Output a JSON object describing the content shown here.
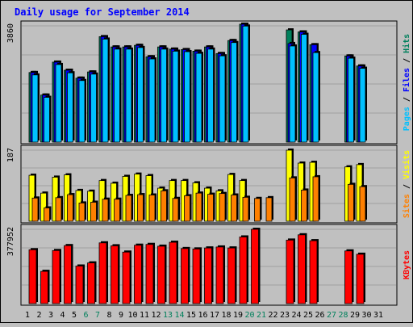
{
  "chart_data": [
    {
      "type": "bar",
      "panel": "pages-files-hits",
      "title": "Daily usage for September 2014",
      "categories": [
        "1",
        "2",
        "3",
        "4",
        "5",
        "6",
        "7",
        "8",
        "9",
        "10",
        "11",
        "12",
        "13",
        "14",
        "15",
        "16",
        "17",
        "18",
        "19",
        "20",
        "21",
        "22",
        "23",
        "24",
        "25",
        "26",
        "27",
        "28",
        "29",
        "30",
        "31"
      ],
      "weekend_days": [
        "6",
        "7",
        "13",
        "14",
        "20",
        "21",
        "27",
        "28"
      ],
      "axis_max_label": "3860",
      "ylim": [
        0,
        3860
      ],
      "legend": [
        {
          "name": "Hits",
          "color": "#00805c"
        },
        {
          "name": "Files",
          "color": "#0000ff"
        },
        {
          "name": "Pages",
          "color": "#00c0ff"
        }
      ],
      "series": [
        {
          "name": "Hits",
          "color": "#00805c",
          "values": [
            2310,
            1562,
            2655,
            2386,
            2123,
            2329,
            3500,
            3159,
            3159,
            3212,
            2833,
            3159,
            3087,
            3071,
            3018,
            3159,
            2940,
            3371,
            3914,
            null,
            null,
            null,
            3725,
            3658,
            3233,
            null,
            null,
            2860,
            2527,
            null,
            null
          ]
        },
        {
          "name": "Files",
          "color": "#0000ff",
          "values": [
            2310,
            1562,
            2655,
            2386,
            2123,
            2329,
            3500,
            3159,
            3159,
            3212,
            2833,
            3159,
            3087,
            3071,
            3018,
            3159,
            2940,
            3371,
            3914,
            null,
            null,
            null,
            3273,
            3658,
            3233,
            null,
            null,
            2860,
            2527,
            null,
            null
          ]
        },
        {
          "name": "Pages",
          "color": "#00c0ff",
          "values": [
            2230,
            1486,
            2575,
            2300,
            2044,
            2257,
            3420,
            3087,
            3087,
            3140,
            2761,
            3087,
            3018,
            3002,
            2946,
            3087,
            2864,
            3305,
            3852,
            null,
            null,
            null,
            3191,
            3578,
            2971,
            null,
            null,
            2786,
            2451,
            null,
            null
          ]
        }
      ]
    },
    {
      "type": "bar",
      "panel": "sites-visits",
      "categories": [
        "1",
        "2",
        "3",
        "4",
        "5",
        "6",
        "7",
        "8",
        "9",
        "10",
        "11",
        "12",
        "13",
        "14",
        "15",
        "16",
        "17",
        "18",
        "19",
        "20",
        "21",
        "22",
        "23",
        "24",
        "25",
        "26",
        "27",
        "28",
        "29",
        "30",
        "31"
      ],
      "axis_max_label": "187",
      "ylim": [
        0,
        187
      ],
      "legend": [
        {
          "name": "Visits",
          "color": "#ffff00"
        },
        {
          "name": "Sites",
          "color": "#ff8000"
        }
      ],
      "series": [
        {
          "name": "Visits",
          "color": "#ffff00",
          "values": [
            121,
            74,
            116,
            122,
            81,
            79,
            107,
            100,
            118,
            124,
            120,
            87,
            107,
            107,
            101,
            87,
            80,
            123,
            107,
            null,
            null,
            null,
            187,
            153,
            155,
            null,
            null,
            143,
            149,
            null,
            null
          ]
        },
        {
          "name": "Sites",
          "color": "#ff8000",
          "values": [
            61,
            35,
            62,
            70,
            48,
            50,
            58,
            58,
            68,
            70,
            69,
            80,
            60,
            67,
            74,
            71,
            73,
            69,
            63,
            60,
            62,
            null,
            114,
            82,
            117,
            null,
            null,
            97,
            91,
            null,
            null
          ]
        }
      ]
    },
    {
      "type": "bar",
      "panel": "kbytes",
      "categories": [
        "1",
        "2",
        "3",
        "4",
        "5",
        "6",
        "7",
        "8",
        "9",
        "10",
        "11",
        "12",
        "13",
        "14",
        "15",
        "16",
        "17",
        "18",
        "19",
        "20",
        "21",
        "22",
        "23",
        "24",
        "25",
        "26",
        "27",
        "28",
        "29",
        "30",
        "31"
      ],
      "axis_max_label": "377952",
      "ylim": [
        0,
        377952
      ],
      "legend": [
        {
          "name": "KBytes",
          "color": "#ff0000"
        }
      ],
      "series": [
        {
          "name": "KBytes",
          "color": "#ff0000",
          "values": [
            274000,
            164000,
            270000,
            295000,
            191000,
            207000,
            309000,
            294000,
            262000,
            297000,
            301000,
            292000,
            312000,
            280000,
            278000,
            283000,
            288000,
            283000,
            339000,
            377952,
            null,
            null,
            323000,
            350000,
            320000,
            null,
            null,
            268000,
            251000,
            null,
            null
          ]
        }
      ]
    }
  ]
}
